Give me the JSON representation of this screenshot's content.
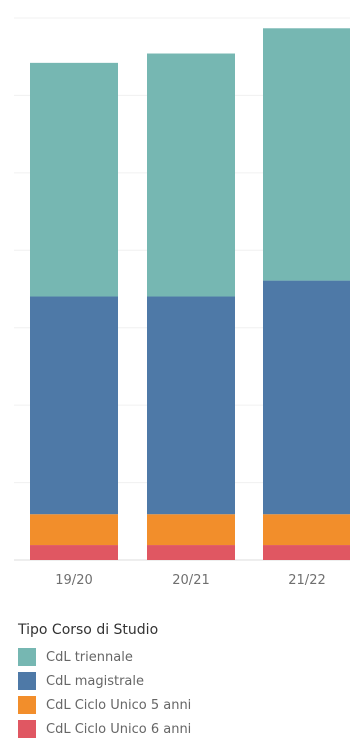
{
  "chart_data": {
    "type": "bar",
    "stacked": true,
    "categories": [
      "19/20",
      "20/21",
      "21/22"
    ],
    "series": [
      {
        "name": "CdL Ciclo Unico 6 anni",
        "color": "#e05762",
        "values": [
          160,
          160,
          160
        ]
      },
      {
        "name": "CdL Ciclo Unico 5 anni",
        "color": "#f28e2b",
        "values": [
          330,
          330,
          330
        ]
      },
      {
        "name": "CdL magistrale",
        "color": "#4e79a7",
        "values": [
          2330,
          2330,
          2500
        ]
      },
      {
        "name": "CdL triennale",
        "color": "#76b7b2",
        "values": [
          2500,
          2600,
          2700
        ]
      }
    ],
    "ylim": [
      0,
      5800
    ],
    "grid": true,
    "legend_position": "bottom",
    "legend_title": "Tipo Corso di Studio",
    "legend_order": [
      "CdL triennale",
      "CdL magistrale",
      "CdL Ciclo Unico 5 anni",
      "CdL Ciclo Unico 6 anni"
    ]
  }
}
